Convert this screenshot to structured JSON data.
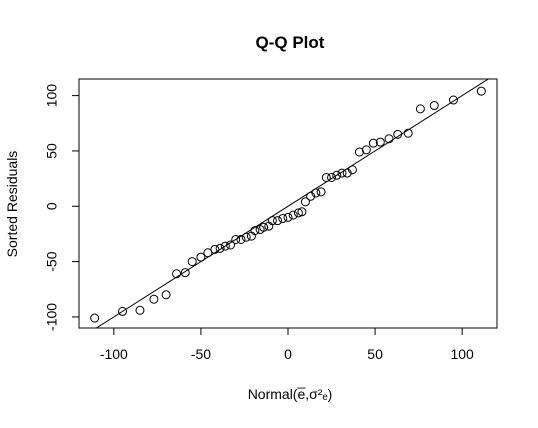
{
  "chart_data": {
    "type": "scatter",
    "title": "Q-Q Plot",
    "xlabel": "Normal(e̅,σ²ₑ)",
    "ylabel": "Sorted Residuals",
    "xlim": [
      -120,
      120
    ],
    "ylim": [
      -110,
      115
    ],
    "x_ticks": [
      -100,
      -50,
      0,
      50,
      100
    ],
    "y_ticks": [
      -100,
      -50,
      0,
      50,
      100
    ],
    "x_tick_labels": [
      "-100",
      "-50",
      "0",
      "50",
      "100"
    ],
    "y_tick_labels": [
      "-100",
      "-50",
      "0",
      "50",
      "100"
    ],
    "grid": false,
    "legend": "none",
    "reference_line": {
      "slope": 1.0,
      "intercept": 0
    },
    "points": [
      {
        "x": -111,
        "y": -101
      },
      {
        "x": -95,
        "y": -95
      },
      {
        "x": -85,
        "y": -94
      },
      {
        "x": -77,
        "y": -84
      },
      {
        "x": -70,
        "y": -80
      },
      {
        "x": -64,
        "y": -61
      },
      {
        "x": -59,
        "y": -60
      },
      {
        "x": -55,
        "y": -50
      },
      {
        "x": -50,
        "y": -46
      },
      {
        "x": -46,
        "y": -42
      },
      {
        "x": -42,
        "y": -39
      },
      {
        "x": -39,
        "y": -38
      },
      {
        "x": -36,
        "y": -36
      },
      {
        "x": -33,
        "y": -35
      },
      {
        "x": -30,
        "y": -30
      },
      {
        "x": -27,
        "y": -30
      },
      {
        "x": -24,
        "y": -28
      },
      {
        "x": -21,
        "y": -27
      },
      {
        "x": -19,
        "y": -22
      },
      {
        "x": -16,
        "y": -21
      },
      {
        "x": -14,
        "y": -19
      },
      {
        "x": -11,
        "y": -18
      },
      {
        "x": -9,
        "y": -13
      },
      {
        "x": -6,
        "y": -13
      },
      {
        "x": -3,
        "y": -11
      },
      {
        "x": 0,
        "y": -10
      },
      {
        "x": 3,
        "y": -8
      },
      {
        "x": 6,
        "y": -6
      },
      {
        "x": 8,
        "y": -5
      },
      {
        "x": 10,
        "y": 4
      },
      {
        "x": 13,
        "y": 9
      },
      {
        "x": 16,
        "y": 12
      },
      {
        "x": 19,
        "y": 13
      },
      {
        "x": 22,
        "y": 26
      },
      {
        "x": 25,
        "y": 26
      },
      {
        "x": 28,
        "y": 28
      },
      {
        "x": 31,
        "y": 30
      },
      {
        "x": 34,
        "y": 30
      },
      {
        "x": 37,
        "y": 33
      },
      {
        "x": 41,
        "y": 49
      },
      {
        "x": 45,
        "y": 51
      },
      {
        "x": 49,
        "y": 57
      },
      {
        "x": 53,
        "y": 58
      },
      {
        "x": 58,
        "y": 61
      },
      {
        "x": 63,
        "y": 65
      },
      {
        "x": 69,
        "y": 66
      },
      {
        "x": 76,
        "y": 88
      },
      {
        "x": 84,
        "y": 91
      },
      {
        "x": 95,
        "y": 96
      },
      {
        "x": 111,
        "y": 104
      }
    ]
  }
}
